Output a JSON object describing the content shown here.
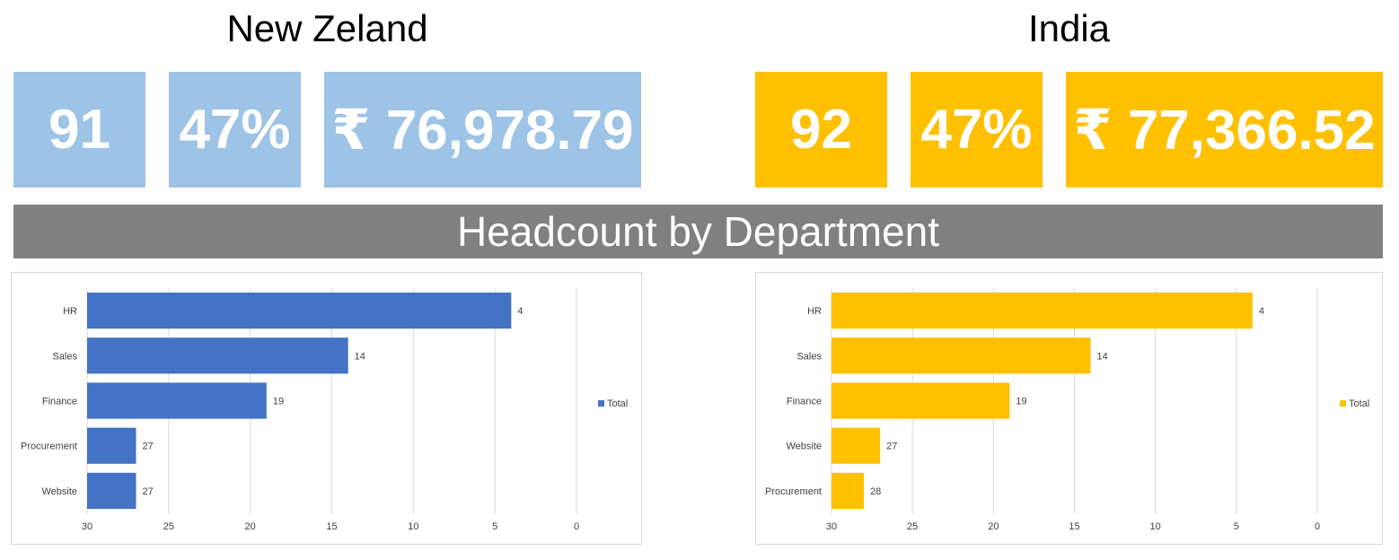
{
  "regions": [
    {
      "title": "New Zeland",
      "color": "#4472c4",
      "kpis": [
        "91",
        "47%",
        "₹ 76,978.79"
      ],
      "tile_color": "#9dc3e6"
    },
    {
      "title": "India",
      "color": "#ffc000",
      "kpis": [
        "92",
        "47%",
        "₹ 77,366.52"
      ],
      "tile_color": "#ffc000"
    }
  ],
  "banner": {
    "title": "Headcount by Department"
  },
  "chart_data": [
    {
      "type": "bar",
      "orientation": "horizontal",
      "x_axis_reversed": true,
      "categories": [
        "HR",
        "Sales",
        "Finance",
        "Procurement",
        "Website"
      ],
      "series": [
        {
          "name": "Total",
          "values": [
            4,
            14,
            19,
            27,
            27
          ],
          "color": "#4472c4"
        }
      ],
      "xlim": [
        0,
        30
      ],
      "x_ticks": [
        "30",
        "25",
        "20",
        "15",
        "10",
        "5",
        "0"
      ],
      "grid": true,
      "legend": "right"
    },
    {
      "type": "bar",
      "orientation": "horizontal",
      "x_axis_reversed": true,
      "categories": [
        "HR",
        "Sales",
        "Finance",
        "Website",
        "Procurement"
      ],
      "series": [
        {
          "name": "Total",
          "values": [
            4,
            14,
            19,
            27,
            28
          ],
          "color": "#ffc000"
        }
      ],
      "xlim": [
        0,
        30
      ],
      "x_ticks": [
        "30",
        "25",
        "20",
        "15",
        "10",
        "5",
        "0"
      ],
      "grid": true,
      "legend": "right"
    }
  ]
}
